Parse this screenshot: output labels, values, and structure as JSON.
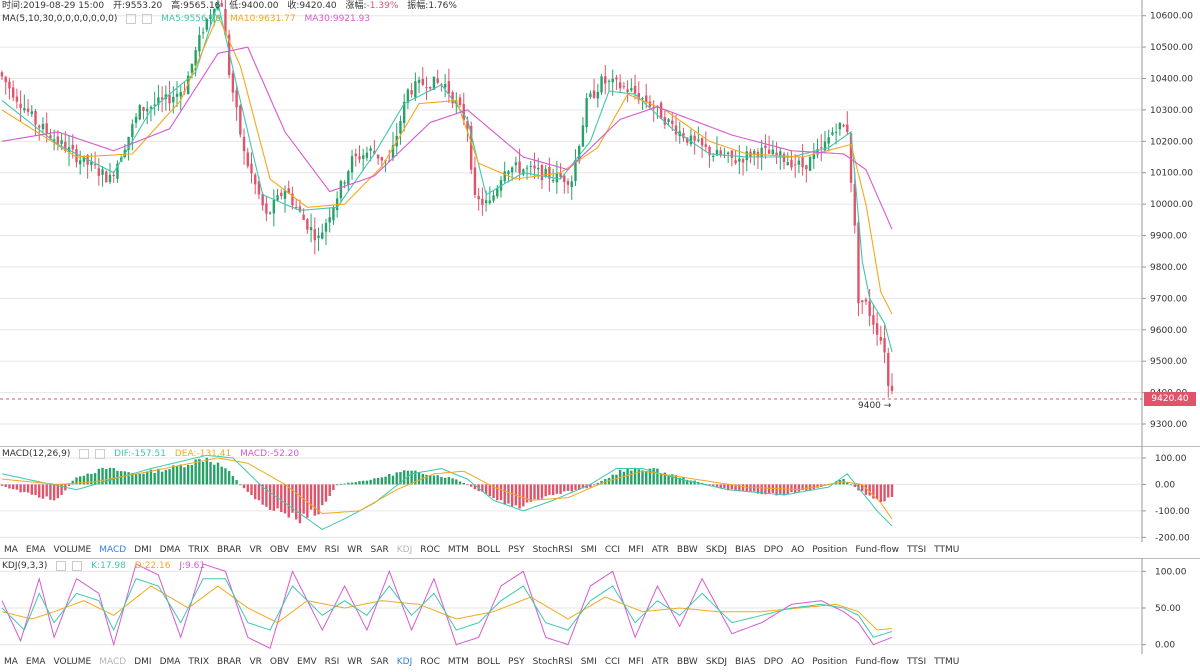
{
  "header": {
    "time_label": "时间:2019-08-29 15:00",
    "open_label": "开:9553.20",
    "high_label": "高:9565.16",
    "low_label": "低:9400.00",
    "close_label": "收:9420.40",
    "change_label": "涨幅:",
    "change_value": "-1.39%",
    "amplitude_label": "振幅:1.76%"
  },
  "ma_legend": {
    "title": "MA(5,10,30,0,0,0,0,0,0,0)",
    "ma5": "MA5:9556.59",
    "ma10": "MA10:9631.77",
    "ma30": "MA30:9921.93"
  },
  "macd_legend": {
    "title": "MACD(12,26,9)",
    "dif": "DIF:-157.51",
    "dea": "DEA:-131.41",
    "macd": "MACD:-52.20"
  },
  "kdj_legend": {
    "title": "KDJ(9,3,3)",
    "k": "K:17.98",
    "d": "D:22.16",
    "j": "J:9.61"
  },
  "price_tag": "9420.40",
  "low_marker": "9400 →",
  "colors": {
    "up": "#26a269",
    "down": "#e0546b",
    "ma5": "#3fc7b0",
    "ma10": "#f2a91e",
    "ma30": "#d85ad0",
    "active_tab": "#2f80ed",
    "grid": "#e6e6e6"
  },
  "tabs_macd": [
    "MA",
    "EMA",
    "VOLUME",
    "MACD",
    "DMI",
    "DMA",
    "TRIX",
    "BRAR",
    "VR",
    "OBV",
    "EMV",
    "RSI",
    "WR",
    "SAR",
    "KDJ",
    "ROC",
    "MTM",
    "BOLL",
    "PSY",
    "StochRSI",
    "SMI",
    "CCI",
    "MFI",
    "ATR",
    "BBW",
    "SKDJ",
    "BIAS",
    "DPO",
    "AO",
    "Position",
    "Fund-flow",
    "TTSI",
    "TTMU"
  ],
  "tabs_kdj": [
    "MA",
    "EMA",
    "VOLUME",
    "MACD",
    "DMI",
    "DMA",
    "TRIX",
    "BRAR",
    "VR",
    "OBV",
    "EMV",
    "RSI",
    "WR",
    "SAR",
    "KDJ",
    "ROC",
    "MTM",
    "BOLL",
    "PSY",
    "StochRSI",
    "SMI",
    "CCI",
    "MFI",
    "ATR",
    "BBW",
    "SKDJ",
    "BIAS",
    "DPO",
    "AO",
    "Position",
    "Fund-flow",
    "TTSI",
    "TTMU"
  ],
  "chart_data": [
    {
      "type": "candlestick",
      "title": "",
      "y_ticks": [
        "10600.00",
        "10500.00",
        "10400.00",
        "10300.00",
        "10200.00",
        "10100.00",
        "10000.00",
        "9900.00",
        "9800.00",
        "9700.00",
        "9600.00",
        "9500.00",
        "9400.00",
        "9300.00"
      ],
      "ylim": [
        9230,
        10650
      ],
      "anchors": [
        [
          0,
          10420
        ],
        [
          10,
          10260
        ],
        [
          20,
          10160
        ],
        [
          30,
          10080
        ],
        [
          38,
          10300
        ],
        [
          45,
          10330
        ],
        [
          50,
          10370
        ],
        [
          55,
          10560
        ],
        [
          58,
          10640
        ],
        [
          60,
          10640
        ],
        [
          62,
          10420
        ],
        [
          66,
          10160
        ],
        [
          72,
          9960
        ],
        [
          77,
          10050
        ],
        [
          82,
          9950
        ],
        [
          86,
          9890
        ],
        [
          90,
          10000
        ],
        [
          95,
          10140
        ],
        [
          100,
          10170
        ],
        [
          105,
          10130
        ],
        [
          110,
          10360
        ],
        [
          115,
          10390
        ],
        [
          120,
          10380
        ],
        [
          124,
          10300
        ],
        [
          126,
          10250
        ],
        [
          128,
          10010
        ],
        [
          132,
          10000
        ],
        [
          136,
          10120
        ],
        [
          142,
          10110
        ],
        [
          148,
          10090
        ],
        [
          154,
          10080
        ],
        [
          158,
          10320
        ],
        [
          162,
          10390
        ],
        [
          166,
          10380
        ],
        [
          170,
          10360
        ],
        [
          175,
          10320
        ],
        [
          180,
          10260
        ],
        [
          186,
          10200
        ],
        [
          192,
          10160
        ],
        [
          198,
          10140
        ],
        [
          204,
          10170
        ],
        [
          210,
          10150
        ],
        [
          216,
          10120
        ],
        [
          221,
          10170
        ],
        [
          225,
          10250
        ],
        [
          228,
          10240
        ],
        [
          230,
          9920
        ],
        [
          231,
          9700
        ],
        [
          233,
          9680
        ],
        [
          236,
          9600
        ],
        [
          238,
          9540
        ],
        [
          239,
          9420
        ]
      ],
      "ma_lines": {
        "ma5": [
          [
            0,
            10330
          ],
          [
            15,
            10190
          ],
          [
            30,
            10100
          ],
          [
            40,
            10300
          ],
          [
            52,
            10420
          ],
          [
            58,
            10640
          ],
          [
            63,
            10380
          ],
          [
            70,
            10030
          ],
          [
            80,
            9980
          ],
          [
            90,
            9990
          ],
          [
            100,
            10160
          ],
          [
            108,
            10320
          ],
          [
            118,
            10380
          ],
          [
            125,
            10270
          ],
          [
            130,
            10030
          ],
          [
            140,
            10100
          ],
          [
            150,
            10080
          ],
          [
            158,
            10200
          ],
          [
            163,
            10360
          ],
          [
            170,
            10350
          ],
          [
            180,
            10240
          ],
          [
            190,
            10160
          ],
          [
            200,
            10150
          ],
          [
            212,
            10150
          ],
          [
            222,
            10180
          ],
          [
            228,
            10230
          ],
          [
            231,
            9820
          ],
          [
            233,
            9700
          ],
          [
            237,
            9620
          ],
          [
            239,
            9530
          ]
        ],
        "ma10": [
          [
            0,
            10300
          ],
          [
            20,
            10150
          ],
          [
            35,
            10160
          ],
          [
            48,
            10330
          ],
          [
            58,
            10600
          ],
          [
            64,
            10440
          ],
          [
            72,
            10080
          ],
          [
            82,
            9990
          ],
          [
            92,
            10000
          ],
          [
            102,
            10120
          ],
          [
            112,
            10320
          ],
          [
            122,
            10330
          ],
          [
            128,
            10130
          ],
          [
            138,
            10080
          ],
          [
            150,
            10100
          ],
          [
            160,
            10180
          ],
          [
            168,
            10350
          ],
          [
            178,
            10300
          ],
          [
            190,
            10200
          ],
          [
            200,
            10160
          ],
          [
            215,
            10150
          ],
          [
            228,
            10190
          ],
          [
            232,
            10000
          ],
          [
            236,
            9720
          ],
          [
            239,
            9650
          ]
        ],
        "ma30": [
          [
            0,
            10200
          ],
          [
            15,
            10230
          ],
          [
            30,
            10170
          ],
          [
            45,
            10240
          ],
          [
            58,
            10480
          ],
          [
            66,
            10500
          ],
          [
            76,
            10230
          ],
          [
            88,
            10040
          ],
          [
            100,
            10090
          ],
          [
            115,
            10260
          ],
          [
            125,
            10300
          ],
          [
            140,
            10150
          ],
          [
            152,
            10110
          ],
          [
            166,
            10270
          ],
          [
            176,
            10310
          ],
          [
            196,
            10220
          ],
          [
            212,
            10170
          ],
          [
            226,
            10160
          ],
          [
            232,
            10110
          ],
          [
            239,
            9920
          ]
        ]
      }
    },
    {
      "type": "macd",
      "title": "MACD(12,26,9)",
      "y_ticks": [
        "100.00",
        "0.00",
        "-100.00",
        "-200.00"
      ],
      "ylim": [
        -210,
        130
      ],
      "hist_anchors": [
        [
          0,
          -5
        ],
        [
          8,
          -40
        ],
        [
          15,
          -60
        ],
        [
          20,
          30
        ],
        [
          28,
          60
        ],
        [
          36,
          40
        ],
        [
          45,
          60
        ],
        [
          55,
          100
        ],
        [
          60,
          60
        ],
        [
          66,
          -30
        ],
        [
          72,
          -90
        ],
        [
          80,
          -130
        ],
        [
          85,
          -100
        ],
        [
          90,
          0
        ],
        [
          100,
          20
        ],
        [
          108,
          50
        ],
        [
          115,
          40
        ],
        [
          122,
          20
        ],
        [
          130,
          -40
        ],
        [
          138,
          -90
        ],
        [
          148,
          -40
        ],
        [
          158,
          -10
        ],
        [
          166,
          50
        ],
        [
          174,
          60
        ],
        [
          184,
          20
        ],
        [
          195,
          -20
        ],
        [
          210,
          -40
        ],
        [
          220,
          -10
        ],
        [
          226,
          20
        ],
        [
          230,
          -20
        ],
        [
          235,
          -60
        ],
        [
          239,
          -52
        ]
      ],
      "dif_anchors": [
        [
          0,
          40
        ],
        [
          10,
          10
        ],
        [
          20,
          -20
        ],
        [
          30,
          20
        ],
        [
          40,
          60
        ],
        [
          55,
          110
        ],
        [
          62,
          100
        ],
        [
          70,
          -10
        ],
        [
          80,
          -110
        ],
        [
          86,
          -170
        ],
        [
          92,
          -130
        ],
        [
          100,
          -70
        ],
        [
          110,
          40
        ],
        [
          118,
          60
        ],
        [
          125,
          20
        ],
        [
          132,
          -60
        ],
        [
          140,
          -100
        ],
        [
          148,
          -60
        ],
        [
          158,
          0
        ],
        [
          165,
          60
        ],
        [
          172,
          60
        ],
        [
          182,
          20
        ],
        [
          195,
          -20
        ],
        [
          210,
          -40
        ],
        [
          222,
          -10
        ],
        [
          227,
          40
        ],
        [
          231,
          -30
        ],
        [
          235,
          -100
        ],
        [
          239,
          -157
        ]
      ],
      "dea_anchors": [
        [
          0,
          20
        ],
        [
          15,
          0
        ],
        [
          25,
          10
        ],
        [
          40,
          50
        ],
        [
          58,
          100
        ],
        [
          66,
          80
        ],
        [
          76,
          0
        ],
        [
          86,
          -110
        ],
        [
          96,
          -100
        ],
        [
          106,
          -20
        ],
        [
          116,
          40
        ],
        [
          124,
          50
        ],
        [
          132,
          -10
        ],
        [
          142,
          -60
        ],
        [
          152,
          -50
        ],
        [
          162,
          10
        ],
        [
          172,
          50
        ],
        [
          186,
          20
        ],
        [
          200,
          -10
        ],
        [
          214,
          -20
        ],
        [
          226,
          10
        ],
        [
          231,
          0
        ],
        [
          236,
          -70
        ],
        [
          239,
          -131
        ]
      ]
    },
    {
      "type": "kdj",
      "title": "KDJ(9,3,3)",
      "y_ticks": [
        "100.00",
        "50.00",
        "0.00"
      ],
      "ylim": [
        -10,
        110
      ],
      "k_anchors": [
        [
          0,
          50
        ],
        [
          6,
          20
        ],
        [
          10,
          70
        ],
        [
          14,
          30
        ],
        [
          20,
          70
        ],
        [
          26,
          60
        ],
        [
          30,
          20
        ],
        [
          36,
          90
        ],
        [
          42,
          80
        ],
        [
          48,
          30
        ],
        [
          54,
          90
        ],
        [
          60,
          90
        ],
        [
          66,
          30
        ],
        [
          72,
          20
        ],
        [
          78,
          80
        ],
        [
          86,
          40
        ],
        [
          92,
          60
        ],
        [
          98,
          40
        ],
        [
          104,
          80
        ],
        [
          110,
          40
        ],
        [
          116,
          70
        ],
        [
          122,
          20
        ],
        [
          128,
          30
        ],
        [
          134,
          60
        ],
        [
          140,
          80
        ],
        [
          146,
          30
        ],
        [
          152,
          20
        ],
        [
          158,
          60
        ],
        [
          164,
          80
        ],
        [
          170,
          30
        ],
        [
          176,
          60
        ],
        [
          182,
          40
        ],
        [
          188,
          70
        ],
        [
          196,
          30
        ],
        [
          204,
          40
        ],
        [
          212,
          50
        ],
        [
          220,
          55
        ],
        [
          226,
          50
        ],
        [
          230,
          40
        ],
        [
          234,
          10
        ],
        [
          239,
          18
        ]
      ],
      "d_anchors": [
        [
          0,
          45
        ],
        [
          8,
          35
        ],
        [
          14,
          45
        ],
        [
          22,
          60
        ],
        [
          30,
          40
        ],
        [
          40,
          80
        ],
        [
          50,
          50
        ],
        [
          58,
          80
        ],
        [
          66,
          50
        ],
        [
          74,
          30
        ],
        [
          82,
          60
        ],
        [
          92,
          50
        ],
        [
          102,
          60
        ],
        [
          112,
          55
        ],
        [
          122,
          35
        ],
        [
          132,
          45
        ],
        [
          142,
          65
        ],
        [
          152,
          35
        ],
        [
          162,
          65
        ],
        [
          172,
          45
        ],
        [
          182,
          50
        ],
        [
          192,
          45
        ],
        [
          204,
          45
        ],
        [
          214,
          50
        ],
        [
          224,
          55
        ],
        [
          230,
          45
        ],
        [
          235,
          20
        ],
        [
          239,
          22
        ]
      ],
      "j_anchors": [
        [
          0,
          60
        ],
        [
          5,
          5
        ],
        [
          10,
          90
        ],
        [
          14,
          10
        ],
        [
          20,
          90
        ],
        [
          26,
          70
        ],
        [
          30,
          0
        ],
        [
          36,
          110
        ],
        [
          42,
          95
        ],
        [
          48,
          10
        ],
        [
          54,
          110
        ],
        [
          60,
          100
        ],
        [
          66,
          10
        ],
        [
          72,
          -5
        ],
        [
          78,
          100
        ],
        [
          86,
          20
        ],
        [
          92,
          80
        ],
        [
          98,
          20
        ],
        [
          104,
          100
        ],
        [
          110,
          20
        ],
        [
          116,
          90
        ],
        [
          122,
          0
        ],
        [
          128,
          10
        ],
        [
          134,
          80
        ],
        [
          140,
          100
        ],
        [
          146,
          10
        ],
        [
          152,
          0
        ],
        [
          158,
          80
        ],
        [
          164,
          100
        ],
        [
          170,
          10
        ],
        [
          176,
          80
        ],
        [
          182,
          25
        ],
        [
          188,
          90
        ],
        [
          196,
          15
        ],
        [
          204,
          30
        ],
        [
          212,
          55
        ],
        [
          220,
          60
        ],
        [
          226,
          45
        ],
        [
          230,
          30
        ],
        [
          234,
          0
        ],
        [
          239,
          10
        ]
      ]
    }
  ]
}
